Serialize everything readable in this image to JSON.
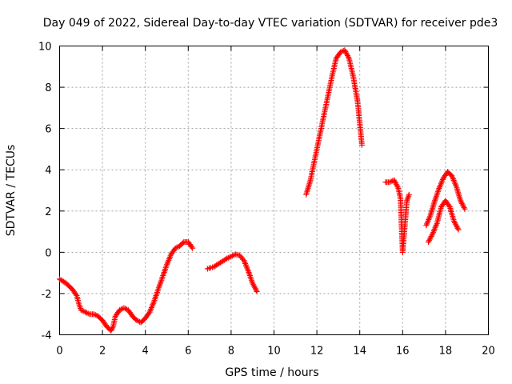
{
  "chart_data": {
    "type": "scatter",
    "title": "Day 049 of 2022, Sidereal Day-to-day VTEC variation (SDTVAR) for receiver pde3",
    "xlabel": "GPS time / hours",
    "ylabel": "SDTVAR / TECUs",
    "xlim": [
      0,
      20
    ],
    "ylim": [
      -4,
      10
    ],
    "xticks": [
      "0",
      "2",
      "4",
      "6",
      "8",
      "10",
      "12",
      "14",
      "16",
      "18",
      "20"
    ],
    "yticks": [
      "-4",
      "-2",
      "0",
      "2",
      "4",
      "6",
      "8",
      "10"
    ],
    "grid": true,
    "marker": "+",
    "series": [
      {
        "name": "SDTVAR",
        "color": "#ff0000",
        "segments": [
          [
            [
              0.0,
              -1.3
            ],
            [
              0.3,
              -1.5
            ],
            [
              0.6,
              -1.8
            ],
            [
              0.8,
              -2.1
            ],
            [
              0.9,
              -2.5
            ],
            [
              1.0,
              -2.8
            ],
            [
              1.2,
              -2.9
            ],
            [
              1.4,
              -3.0
            ],
            [
              1.6,
              -3.0
            ],
            [
              1.8,
              -3.1
            ],
            [
              2.0,
              -3.3
            ],
            [
              2.2,
              -3.6
            ],
            [
              2.4,
              -3.8
            ],
            [
              2.5,
              -3.6
            ],
            [
              2.6,
              -3.1
            ],
            [
              2.8,
              -2.8
            ],
            [
              3.0,
              -2.7
            ],
            [
              3.2,
              -2.8
            ],
            [
              3.4,
              -3.1
            ],
            [
              3.6,
              -3.3
            ],
            [
              3.8,
              -3.4
            ],
            [
              4.0,
              -3.2
            ],
            [
              4.2,
              -2.9
            ],
            [
              4.4,
              -2.4
            ],
            [
              4.6,
              -1.8
            ],
            [
              4.8,
              -1.2
            ],
            [
              5.0,
              -0.6
            ],
            [
              5.2,
              -0.1
            ],
            [
              5.4,
              0.2
            ],
            [
              5.6,
              0.3
            ],
            [
              5.8,
              0.5
            ],
            [
              6.0,
              0.5
            ],
            [
              6.2,
              0.2
            ]
          ],
          [
            [
              6.9,
              -0.8
            ],
            [
              7.2,
              -0.7
            ],
            [
              7.5,
              -0.5
            ],
            [
              7.8,
              -0.3
            ],
            [
              8.0,
              -0.2
            ],
            [
              8.2,
              -0.1
            ],
            [
              8.4,
              -0.15
            ],
            [
              8.6,
              -0.4
            ],
            [
              8.8,
              -0.9
            ],
            [
              9.0,
              -1.5
            ],
            [
              9.2,
              -1.9
            ]
          ],
          [
            [
              11.5,
              2.8
            ],
            [
              11.7,
              3.5
            ],
            [
              11.9,
              4.5
            ],
            [
              12.1,
              5.5
            ],
            [
              12.3,
              6.5
            ],
            [
              12.5,
              7.5
            ],
            [
              12.7,
              8.5
            ],
            [
              12.9,
              9.4
            ],
            [
              13.1,
              9.7
            ],
            [
              13.3,
              9.8
            ],
            [
              13.5,
              9.4
            ],
            [
              13.7,
              8.5
            ],
            [
              13.9,
              7.3
            ],
            [
              14.1,
              5.2
            ]
          ],
          [
            [
              15.2,
              3.4
            ],
            [
              15.4,
              3.4
            ],
            [
              15.6,
              3.5
            ],
            [
              15.8,
              3.1
            ],
            [
              15.9,
              2.6
            ],
            [
              16.0,
              0.0
            ],
            [
              16.2,
              2.5
            ],
            [
              16.3,
              2.8
            ]
          ],
          [
            [
              17.1,
              1.3
            ],
            [
              17.3,
              1.8
            ],
            [
              17.5,
              2.5
            ],
            [
              17.7,
              3.1
            ],
            [
              17.9,
              3.6
            ],
            [
              18.1,
              3.9
            ],
            [
              18.3,
              3.7
            ],
            [
              18.5,
              3.2
            ],
            [
              18.7,
              2.5
            ],
            [
              18.9,
              2.1
            ]
          ],
          [
            [
              17.2,
              0.5
            ],
            [
              17.4,
              0.9
            ],
            [
              17.6,
              1.4
            ],
            [
              17.8,
              2.2
            ],
            [
              18.0,
              2.5
            ],
            [
              18.2,
              2.2
            ],
            [
              18.4,
              1.5
            ],
            [
              18.6,
              1.1
            ]
          ]
        ]
      }
    ]
  }
}
